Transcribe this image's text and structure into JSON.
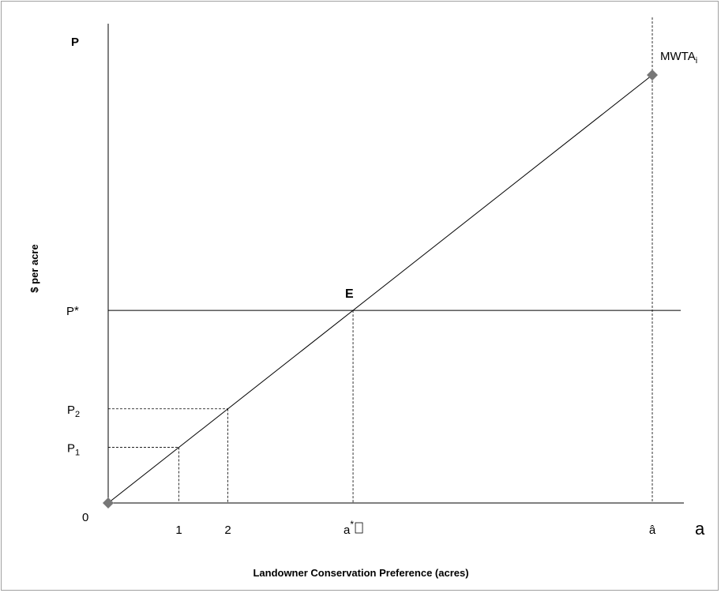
{
  "chart_data": {
    "type": "line",
    "y_axis_label": "$ per acre",
    "y_axis_top_label": "P",
    "x_axis_title": "Landowner Conservation Preference (acres)",
    "x_axis_end_label": "a",
    "origin_label": "0",
    "curve": {
      "name_main": "MWTA",
      "name_sub": "i",
      "points": [
        {
          "x": 0,
          "y": 0
        },
        {
          "x": 10,
          "y": 10
        }
      ]
    },
    "price_line": {
      "label": "P",
      "label_sup": "*",
      "y": 4.5
    },
    "equilibrium": {
      "label": "E",
      "x": 4.5,
      "y": 4.5
    },
    "x_ticks": [
      {
        "label": "1",
        "x": 1.3
      },
      {
        "label": "2",
        "x": 2.2
      },
      {
        "label": "a",
        "sup": "*",
        "suffix": "",
        "x": 4.5
      },
      {
        "label": "â",
        "x": 10
      }
    ],
    "y_ticks": [
      {
        "label": "P",
        "sub": "1",
        "y": 1.3
      },
      {
        "label": "P",
        "sub": "2",
        "y": 2.2
      }
    ]
  }
}
